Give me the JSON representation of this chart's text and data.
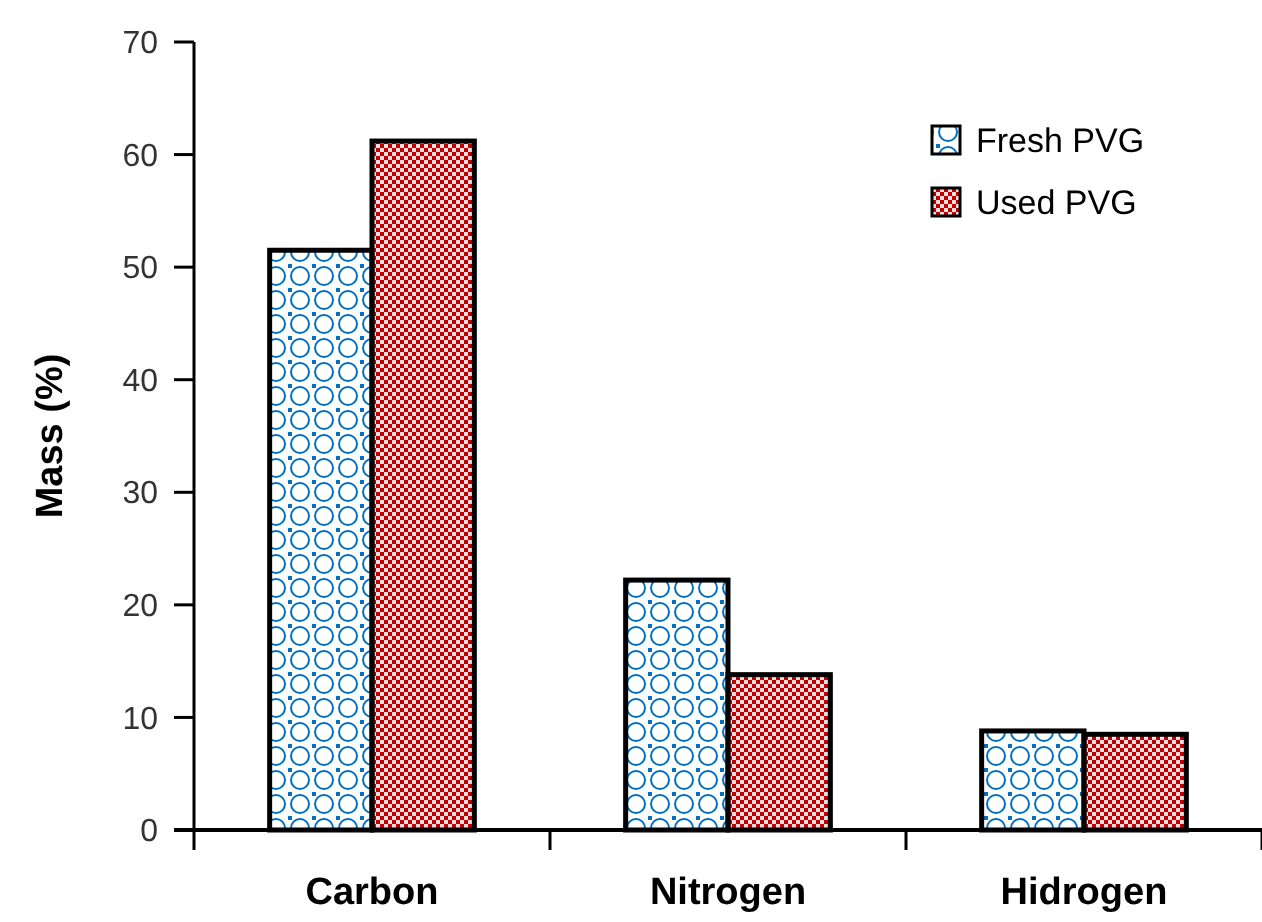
{
  "chart_data": {
    "type": "bar",
    "ylabel": "Mass (%)",
    "categories": [
      "Carbon",
      "Nitrogen",
      "Hidrogen"
    ],
    "series": [
      {
        "name": "Fresh PVG",
        "color": "#0070c0",
        "values": [
          51.5,
          22.2,
          8.8
        ]
      },
      {
        "name": "Used PVG",
        "color": "#c00000",
        "values": [
          61.2,
          13.8,
          8.5
        ]
      }
    ],
    "ylim": [
      0,
      70
    ],
    "yticks": [
      0,
      10,
      20,
      30,
      40,
      50,
      60,
      70
    ],
    "grid": false,
    "legend": "top right"
  }
}
